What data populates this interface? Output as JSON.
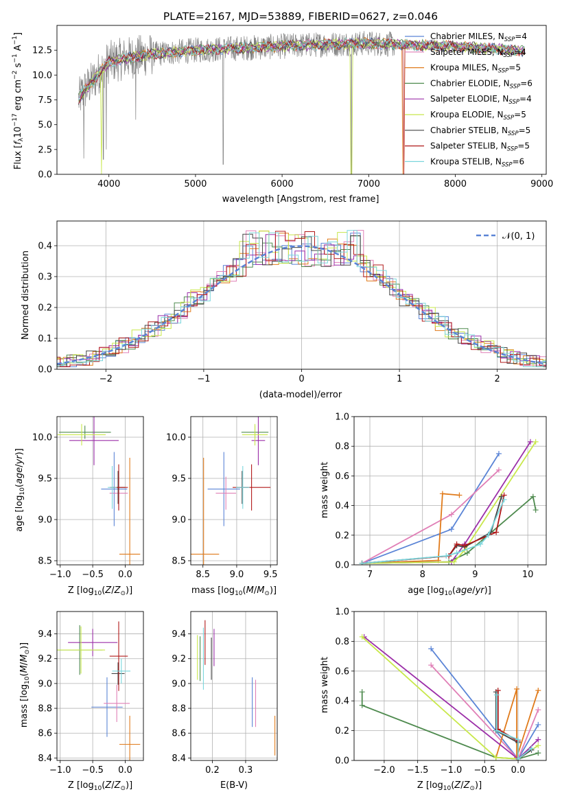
{
  "palette": {
    "Chabrier MILES": "#5a84d6",
    "Salpeter MILES": "#e07fb6",
    "Kroupa MILES": "#e07a1a",
    "Chabrier ELODIE": "#4e8a4e",
    "Salpeter ELODIE": "#9b2ea8",
    "Kroupa ELODIE": "#c8e84a",
    "Chabrier STELIB": "#444444",
    "Salpeter STELIB": "#b01818",
    "Kroupa STELIB": "#79d6dc",
    "data": "#808080",
    "normal": "#5a84d6"
  },
  "chart_data": [
    {
      "id": "spectrum",
      "type": "line",
      "title": "PLATE=2167, MJD=53889, FIBERID=0627, z=0.046",
      "xlabel": "wavelength [Angstrom, rest frame]",
      "ylabel_parts": {
        "a": "Flux [",
        "b": "f",
        "c": "λ",
        "d": "10",
        "e": "−17",
        "f": " erg cm",
        "g": "−2",
        "h": " s",
        "i": "−1",
        "j": " A",
        "k": "−1",
        "l": "]"
      },
      "xlim": [
        3400,
        9050
      ],
      "ylim": [
        0,
        15
      ],
      "xticks": [
        "4000",
        "5000",
        "6000",
        "7000",
        "8000",
        "9000"
      ],
      "yticks": [
        "0.0",
        "2.5",
        "5.0",
        "7.5",
        "10.0",
        "12.5"
      ],
      "xtick_values": [
        4000,
        5000,
        6000,
        7000,
        8000,
        9000
      ],
      "ytick_values": [
        0,
        2.5,
        5,
        7.5,
        10,
        12.5
      ],
      "continuum_x": [
        3650,
        3700,
        3800,
        3900,
        4000,
        4200,
        4500,
        5000,
        5500,
        6000,
        6500,
        7000,
        7500,
        8000,
        8500,
        9000
      ],
      "continuum_y": [
        7.5,
        8.3,
        9.2,
        10.4,
        11.3,
        11.7,
        12.1,
        12.5,
        12.7,
        12.9,
        13.1,
        13.2,
        13.0,
        12.9,
        12.6,
        12.3
      ],
      "spikes": [
        {
          "x": 3710,
          "y": 1.6
        },
        {
          "x": 3935,
          "y": 1.5
        },
        {
          "x": 3970,
          "y": 2.5
        },
        {
          "x": 4310,
          "y": 5.5
        },
        {
          "x": 5320,
          "y": 1.0
        },
        {
          "x": 6800,
          "y": 0.0
        }
      ],
      "drops": [
        {
          "series": "Kroupa ELODIE",
          "x": 3910,
          "y": 0.0
        },
        {
          "series": "Kroupa MILES",
          "x": 7400,
          "y": 0.0
        },
        {
          "series": "Salpeter STELIB",
          "x": 7410,
          "y": 0.0
        },
        {
          "series": "Kroupa ELODIE",
          "x": 6800,
          "y": 0.0
        }
      ],
      "legend_position": "upper-right",
      "legend": [
        {
          "name": "Chabrier MILES",
          "n": "4"
        },
        {
          "name": "Salpeter MILES",
          "n": "4"
        },
        {
          "name": "Kroupa MILES",
          "n": "5"
        },
        {
          "name": "Chabrier ELODIE",
          "n": "6"
        },
        {
          "name": "Salpeter ELODIE",
          "n": "4"
        },
        {
          "name": "Kroupa ELODIE",
          "n": "5"
        },
        {
          "name": "Chabrier STELIB",
          "n": "5"
        },
        {
          "name": "Salpeter STELIB",
          "n": "5"
        },
        {
          "name": "Kroupa STELIB",
          "n": "6"
        }
      ],
      "legend_n_prefix": ", N",
      "legend_n_sub": "SSP",
      "legend_n_eq": "="
    },
    {
      "id": "residuals",
      "type": "histogram",
      "xlabel": "(data-model)/error",
      "ylabel": "Normed distribution",
      "xlim": [
        -2.5,
        2.5
      ],
      "ylim": [
        0,
        0.48
      ],
      "xticks": [
        "−2",
        "−1",
        "0",
        "1",
        "2"
      ],
      "xtick_values": [
        -2,
        -1,
        0,
        1,
        2
      ],
      "yticks": [
        "0.0",
        "0.1",
        "0.2",
        "0.3",
        "0.4"
      ],
      "ytick_values": [
        0,
        0.1,
        0.2,
        0.3,
        0.4
      ],
      "bin_width": 0.1,
      "grid": true,
      "legend_label": "𝒩(0, 1)",
      "legend_position": "upper-right"
    },
    {
      "id": "age-vs-Z",
      "type": "errorbar",
      "xlabel": "Z [log10(Z/Z⊙)]",
      "ylabel": "age  [log10(age/yr)]",
      "xlim": [
        -1.05,
        0.28
      ],
      "ylim": [
        8.45,
        10.25
      ],
      "xticks": [
        "−1.0",
        "−0.5",
        "0.0"
      ],
      "xtick_values": [
        -1.0,
        -0.5,
        0.0
      ],
      "yticks": [
        "8.5",
        "9.0",
        "9.5",
        "10.0"
      ],
      "ytick_values": [
        8.5,
        9.0,
        9.5,
        10.0
      ],
      "points": [
        {
          "series": "Chabrier MILES",
          "x": -0.17,
          "xerr": 0.2,
          "y": 9.37,
          "yerr": 0.45
        },
        {
          "series": "Salpeter MILES",
          "x": -0.1,
          "xerr": 0.14,
          "y": 9.32,
          "yerr": 0.2
        },
        {
          "series": "Kroupa MILES",
          "x": 0.07,
          "xerr": 0.16,
          "y": 8.58,
          "yerr": 1.17
        },
        {
          "series": "Chabrier ELODIE",
          "x": -0.62,
          "xerr": 0.4,
          "y": 10.06,
          "yerr": 0.08
        },
        {
          "series": "Salpeter ELODIE",
          "x": -0.48,
          "xerr": 0.38,
          "y": 9.96,
          "yerr": 0.3
        },
        {
          "series": "Kroupa ELODIE",
          "x": -0.67,
          "xerr": 0.37,
          "y": 10.03,
          "yerr": 0.13
        },
        {
          "series": "Chabrier STELIB",
          "x": -0.11,
          "xerr": 0.11,
          "y": 9.39,
          "yerr": 0.2
        },
        {
          "series": "Salpeter STELIB",
          "x": -0.1,
          "xerr": 0.14,
          "y": 9.39,
          "yerr": 0.28
        },
        {
          "series": "Kroupa STELIB",
          "x": -0.2,
          "xerr": 0.07,
          "y": 9.39,
          "yerr": 0.26
        }
      ]
    },
    {
      "id": "age-vs-mass",
      "type": "errorbar",
      "xlabel": "mass [log10(M/M⊙)]",
      "ylabel": "",
      "xlim": [
        8.32,
        9.6
      ],
      "ylim": [
        8.45,
        10.25
      ],
      "xticks": [
        "8.5",
        "9.0",
        "9.5"
      ],
      "xtick_values": [
        8.5,
        9.0,
        9.5
      ],
      "yticks": [
        "8.5",
        "9.0",
        "9.5",
        "10.0"
      ],
      "ytick_values": [
        8.5,
        9.0,
        9.5,
        10.0
      ],
      "points": [
        {
          "series": "Chabrier MILES",
          "x": 8.81,
          "xerr": 0.24,
          "y": 9.37,
          "yerr": 0.45
        },
        {
          "series": "Salpeter MILES",
          "x": 8.84,
          "xerr": 0.15,
          "y": 9.32,
          "yerr": 0.2
        },
        {
          "series": "Kroupa MILES",
          "x": 8.51,
          "xerr": 0.23,
          "y": 8.58,
          "yerr": 1.17
        },
        {
          "series": "Chabrier ELODIE",
          "x": 9.27,
          "xerr": 0.2,
          "y": 10.06,
          "yerr": 0.08
        },
        {
          "series": "Salpeter ELODIE",
          "x": 9.32,
          "xerr": 0.1,
          "y": 9.96,
          "yerr": 0.3
        },
        {
          "series": "Kroupa ELODIE",
          "x": 9.27,
          "xerr": 0.19,
          "y": 10.03,
          "yerr": 0.13
        },
        {
          "series": "Chabrier STELIB",
          "x": 9.08,
          "xerr": 0.09,
          "y": 9.39,
          "yerr": 0.2
        },
        {
          "series": "Salpeter STELIB",
          "x": 9.22,
          "xerr": 0.28,
          "y": 9.39,
          "yerr": 0.28
        },
        {
          "series": "Kroupa STELIB",
          "x": 9.09,
          "xerr": 0.1,
          "y": 9.39,
          "yerr": 0.26
        }
      ]
    },
    {
      "id": "weight-vs-age",
      "type": "line",
      "xlabel": "age  [log10(age/yr)]",
      "ylabel": "mass weight",
      "xlim": [
        6.7,
        10.35
      ],
      "ylim": [
        0,
        1.0
      ],
      "xticks": [
        "7",
        "8",
        "9",
        "10"
      ],
      "xtick_values": [
        7,
        8,
        9,
        10
      ],
      "yticks": [
        "0.0",
        "0.2",
        "0.4",
        "0.6",
        "0.8",
        "1.0"
      ],
      "ytick_values": [
        0,
        0.2,
        0.4,
        0.6,
        0.8,
        1.0
      ],
      "series": [
        {
          "series": "Chabrier MILES",
          "x": [
            6.85,
            8.55,
            9.45
          ],
          "y": [
            0.01,
            0.24,
            0.75
          ]
        },
        {
          "series": "Salpeter MILES",
          "x": [
            6.85,
            8.55,
            9.45
          ],
          "y": [
            0.01,
            0.34,
            0.64
          ]
        },
        {
          "series": "Kroupa MILES",
          "x": [
            6.85,
            8.3,
            8.38,
            8.7
          ],
          "y": [
            0.01,
            0.03,
            0.48,
            0.47
          ]
        },
        {
          "series": "Chabrier ELODIE",
          "x": [
            6.85,
            8.5,
            8.85,
            10.1,
            10.15
          ],
          "y": [
            0.01,
            0.02,
            0.08,
            0.46,
            0.37
          ]
        },
        {
          "series": "Salpeter ELODIE",
          "x": [
            6.85,
            8.55,
            8.8,
            10.05
          ],
          "y": [
            0.01,
            0.02,
            0.14,
            0.83
          ]
        },
        {
          "series": "Kroupa ELODIE",
          "x": [
            6.85,
            8.6,
            8.8,
            10.15
          ],
          "y": [
            0.01,
            0.02,
            0.1,
            0.83
          ]
        },
        {
          "series": "Chabrier STELIB",
          "x": [
            6.85,
            8.5,
            8.65,
            8.8,
            9.3,
            9.5
          ],
          "y": [
            0.01,
            0.06,
            0.13,
            0.12,
            0.22,
            0.46
          ]
        },
        {
          "series": "Salpeter STELIB",
          "x": [
            6.85,
            8.5,
            8.65,
            8.8,
            9.4,
            9.55
          ],
          "y": [
            0.01,
            0.06,
            0.14,
            0.13,
            0.22,
            0.47
          ]
        },
        {
          "series": "Kroupa STELIB",
          "x": [
            6.85,
            8.45,
            8.65,
            9.1,
            9.25,
            9.55
          ],
          "y": [
            0.01,
            0.06,
            0.08,
            0.14,
            0.2,
            0.44
          ]
        }
      ]
    },
    {
      "id": "mass-vs-Z",
      "type": "errorbar",
      "xlabel": "Z [log10(Z/Z⊙)]",
      "ylabel": "mass [log10(M/M⊙)]",
      "xlim": [
        -1.05,
        0.28
      ],
      "ylim": [
        8.38,
        9.58
      ],
      "xticks": [
        "−1.0",
        "−0.5",
        "0.0"
      ],
      "xtick_values": [
        -1.0,
        -0.5,
        0.0
      ],
      "yticks": [
        "8.4",
        "8.6",
        "8.8",
        "9.0",
        "9.2",
        "9.4"
      ],
      "ytick_values": [
        8.4,
        8.6,
        8.8,
        9.0,
        9.2,
        9.4
      ],
      "points": [
        {
          "series": "Chabrier MILES",
          "x": -0.28,
          "xerr": 0.24,
          "y": 8.81,
          "yerr": 0.24
        },
        {
          "series": "Salpeter MILES",
          "x": -0.13,
          "xerr": 0.2,
          "y": 8.84,
          "yerr": 0.15
        },
        {
          "series": "Kroupa MILES",
          "x": 0.07,
          "xerr": 0.16,
          "y": 8.51,
          "yerr": 0.23
        },
        {
          "series": "Chabrier ELODIE",
          "x": -0.7,
          "xerr": 0.35,
          "y": 9.27,
          "yerr": 0.2
        },
        {
          "series": "Salpeter ELODIE",
          "x": -0.5,
          "xerr": 0.38,
          "y": 9.33,
          "yerr": 0.11
        },
        {
          "series": "Kroupa ELODIE",
          "x": -0.68,
          "xerr": 0.37,
          "y": 9.27,
          "yerr": 0.19
        },
        {
          "series": "Chabrier STELIB",
          "x": -0.11,
          "xerr": 0.1,
          "y": 9.08,
          "yerr": 0.09
        },
        {
          "series": "Salpeter STELIB",
          "x": -0.1,
          "xerr": 0.14,
          "y": 9.22,
          "yerr": 0.28
        },
        {
          "series": "Kroupa STELIB",
          "x": -0.06,
          "xerr": 0.14,
          "y": 9.1,
          "yerr": 0.1
        }
      ]
    },
    {
      "id": "mass-vs-ebv",
      "type": "errorbar",
      "xlabel": "E(B-V)",
      "ylabel": "",
      "xlim": [
        0.135,
        0.395
      ],
      "ylim": [
        8.38,
        9.58
      ],
      "xticks": [
        "0.2",
        "0.3"
      ],
      "xtick_values": [
        0.2,
        0.3
      ],
      "yticks": [
        "8.4",
        "8.6",
        "8.8",
        "9.0",
        "9.2",
        "9.4"
      ],
      "ytick_values": [
        8.4,
        8.6,
        8.8,
        9.0,
        9.2,
        9.4
      ],
      "points": [
        {
          "series": "Chabrier MILES",
          "x": 0.32,
          "xerr": 0,
          "y": 8.85,
          "yerr": 0.2
        },
        {
          "series": "Salpeter MILES",
          "x": 0.33,
          "xerr": 0,
          "y": 8.84,
          "yerr": 0.19
        },
        {
          "series": "Kroupa MILES",
          "x": 0.388,
          "xerr": 0,
          "y": 8.58,
          "yerr": 0.16
        },
        {
          "series": "Chabrier ELODIE",
          "x": 0.163,
          "xerr": 0,
          "y": 9.2,
          "yerr": 0.18
        },
        {
          "series": "Salpeter ELODIE",
          "x": 0.205,
          "xerr": 0,
          "y": 9.29,
          "yerr": 0.15
        },
        {
          "series": "Kroupa ELODIE",
          "x": 0.155,
          "xerr": 0,
          "y": 9.21,
          "yerr": 0.18
        },
        {
          "series": "Chabrier STELIB",
          "x": 0.197,
          "xerr": 0,
          "y": 9.2,
          "yerr": 0.17
        },
        {
          "series": "Salpeter STELIB",
          "x": 0.178,
          "xerr": 0,
          "y": 9.33,
          "yerr": 0.18
        },
        {
          "series": "Kroupa STELIB",
          "x": 0.173,
          "xerr": 0,
          "y": 9.2,
          "yerr": 0.25
        }
      ]
    },
    {
      "id": "weight-vs-Z",
      "type": "line",
      "xlabel": "Z [log10(Z/Z⊙)]",
      "ylabel": "mass weight",
      "xlim": [
        -2.45,
        0.42
      ],
      "ylim": [
        0,
        1.0
      ],
      "xticks": [
        "−2.0",
        "−1.5",
        "−1.0",
        "−0.5",
        "0.0"
      ],
      "xtick_values": [
        -2.0,
        -1.5,
        -1.0,
        -0.5,
        0.0
      ],
      "yticks": [
        "0.0",
        "0.2",
        "0.4",
        "0.6",
        "0.8",
        "1.0"
      ],
      "ytick_values": [
        0,
        0.2,
        0.4,
        0.6,
        0.8,
        1.0
      ],
      "series": [
        {
          "series": "Chabrier MILES",
          "x": [
            -1.3,
            0.0,
            0.3
          ],
          "y": [
            0.75,
            0.01,
            0.24
          ]
        },
        {
          "series": "Salpeter MILES",
          "x": [
            -1.3,
            0.0,
            0.3
          ],
          "y": [
            0.64,
            0.01,
            0.34
          ]
        },
        {
          "series": "Kroupa MILES",
          "x": [
            -0.33,
            -0.02,
            -0.02,
            0.3
          ],
          "y": [
            0.02,
            0.48,
            0.02,
            0.47
          ]
        },
        {
          "series": "Chabrier ELODIE",
          "x": [
            -2.33,
            -2.33,
            -0.33,
            0.0,
            0.3
          ],
          "y": [
            0.46,
            0.37,
            0.02,
            0.01,
            0.05
          ]
        },
        {
          "series": "Salpeter ELODIE",
          "x": [
            -2.3,
            0.0,
            0.3
          ],
          "y": [
            0.83,
            0.01,
            0.14
          ]
        },
        {
          "series": "Kroupa ELODIE",
          "x": [
            -2.33,
            -0.33,
            0.0,
            0.3
          ],
          "y": [
            0.83,
            0.02,
            0.01,
            0.1
          ]
        },
        {
          "series": "Chabrier STELIB",
          "x": [
            -0.33,
            -0.33,
            0.0,
            0.0,
            0.2
          ],
          "y": [
            0.46,
            0.2,
            0.12,
            0.01,
            0.07
          ]
        },
        {
          "series": "Salpeter STELIB",
          "x": [
            -0.3,
            -0.3,
            0.0,
            0.0,
            0.2
          ],
          "y": [
            0.47,
            0.21,
            0.13,
            0.01,
            0.08
          ]
        },
        {
          "series": "Kroupa STELIB",
          "x": [
            -0.32,
            -0.32,
            0.0,
            0.0,
            0.2
          ],
          "y": [
            0.44,
            0.2,
            0.14,
            0.01,
            0.08
          ]
        }
      ]
    }
  ]
}
